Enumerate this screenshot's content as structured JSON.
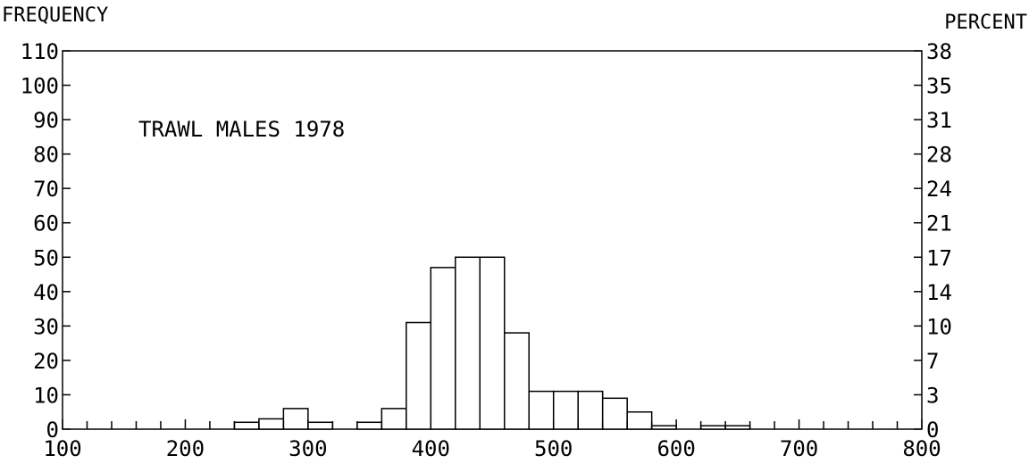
{
  "chart_data": {
    "type": "bar",
    "title": "",
    "annotation": "TRAWL MALES  1978",
    "ylabel_left": "FREQUENCY",
    "ylabel_right": "PERCENT",
    "xlim": [
      100,
      800
    ],
    "ylim": [
      0,
      110
    ],
    "x_ticks": [
      "100",
      "200",
      "300",
      "400",
      "500",
      "600",
      "700",
      "800"
    ],
    "y_ticks_left": [
      "0",
      "10",
      "20",
      "30",
      "40",
      "50",
      "60",
      "70",
      "80",
      "90",
      "100",
      "110"
    ],
    "y_ticks_right": [
      "0",
      "3",
      "7",
      "10",
      "14",
      "17",
      "21",
      "24",
      "28",
      "31",
      "35",
      "38"
    ],
    "bin_width": 20,
    "bins": [
      {
        "x": 240,
        "value": 2
      },
      {
        "x": 260,
        "value": 3
      },
      {
        "x": 280,
        "value": 6
      },
      {
        "x": 300,
        "value": 2
      },
      {
        "x": 340,
        "value": 2
      },
      {
        "x": 360,
        "value": 6
      },
      {
        "x": 380,
        "value": 31
      },
      {
        "x": 400,
        "value": 47
      },
      {
        "x": 420,
        "value": 50
      },
      {
        "x": 440,
        "value": 50
      },
      {
        "x": 460,
        "value": 28
      },
      {
        "x": 480,
        "value": 11
      },
      {
        "x": 500,
        "value": 11
      },
      {
        "x": 520,
        "value": 11
      },
      {
        "x": 540,
        "value": 9
      },
      {
        "x": 560,
        "value": 5
      },
      {
        "x": 580,
        "value": 1
      },
      {
        "x": 620,
        "value": 1
      },
      {
        "x": 640,
        "value": 1
      }
    ],
    "grid": false
  }
}
